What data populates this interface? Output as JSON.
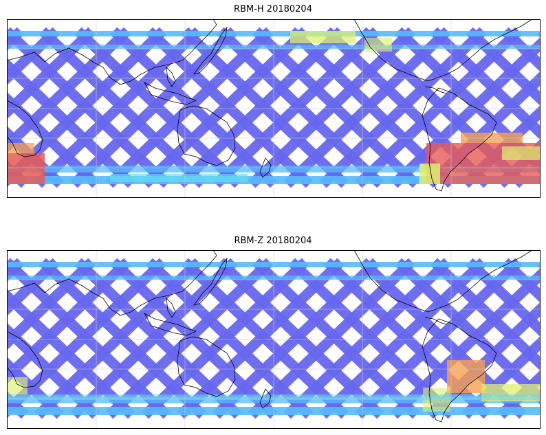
{
  "panels": [
    {
      "title": "RBM-H 20180204",
      "product": "RBM-H",
      "date": "20180204"
    },
    {
      "title": "RBM-Z 20180204",
      "product": "RBM-Z",
      "date": "20180204"
    }
  ],
  "colors": {
    "track_low": "#6666ee",
    "track_mid": "#55bbff",
    "track_cyan": "#66ddee",
    "track_yellow": "#ddf070",
    "track_orange": "#f8a050",
    "track_red": "#e85a55",
    "coastline": "#000000",
    "grid": "#cccccc"
  }
}
